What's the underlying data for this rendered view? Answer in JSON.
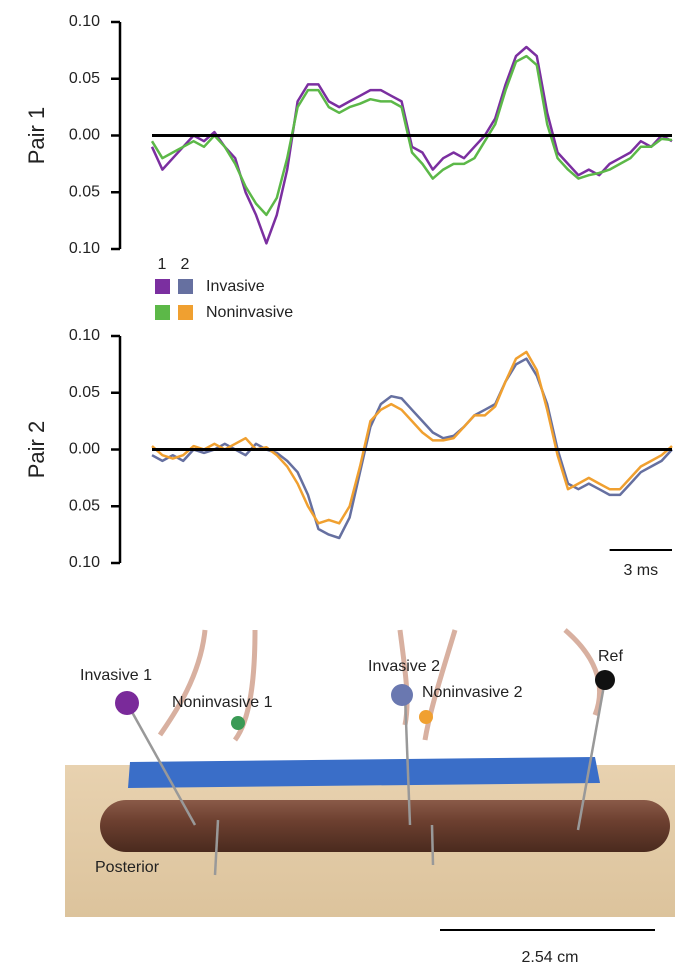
{
  "chart_data": [
    {
      "type": "line",
      "y_label": "Pair 1",
      "x": [
        0,
        0.5,
        1,
        1.5,
        2,
        2.5,
        3,
        3.5,
        4,
        4.5,
        5,
        5.5,
        6,
        6.5,
        7,
        7.5,
        8,
        8.5,
        9,
        9.5,
        10,
        10.5,
        11,
        11.5,
        12,
        12.5,
        13,
        13.5,
        14,
        14.5,
        15,
        15.5,
        16,
        16.5,
        17,
        17.5,
        18,
        18.5,
        19,
        19.5,
        20,
        20.5,
        21,
        21.5,
        22,
        22.5,
        23,
        23.5,
        24,
        24.5,
        25
      ],
      "xlim": [
        0,
        25
      ],
      "ylim": [
        -0.1,
        0.1
      ],
      "yticks": [
        {
          "value": 0.1,
          "label": "0.10"
        },
        {
          "value": 0.05,
          "label": "0.05"
        },
        {
          "value": 0,
          "label": "0.00"
        },
        {
          "value": -0.05,
          "label": "0.05"
        },
        {
          "value": -0.1,
          "label": "0.10"
        }
      ],
      "series": [
        {
          "name": "Invasive",
          "color": "#7b2fa0",
          "values": [
            -0.01,
            -0.03,
            -0.02,
            -0.01,
            0.0,
            -0.005,
            0.003,
            -0.01,
            -0.02,
            -0.05,
            -0.07,
            -0.095,
            -0.07,
            -0.03,
            0.03,
            0.045,
            0.045,
            0.03,
            0.025,
            0.03,
            0.035,
            0.04,
            0.04,
            0.035,
            0.03,
            -0.01,
            -0.015,
            -0.03,
            -0.02,
            -0.015,
            -0.02,
            -0.01,
            0.0,
            0.015,
            0.045,
            0.07,
            0.078,
            0.07,
            0.02,
            -0.015,
            -0.025,
            -0.035,
            -0.03,
            -0.035,
            -0.025,
            -0.02,
            -0.015,
            -0.005,
            -0.01,
            0.0,
            -0.005
          ]
        },
        {
          "name": "Noninvasive",
          "color": "#5cb848",
          "values": [
            -0.005,
            -0.02,
            -0.015,
            -0.01,
            -0.005,
            -0.01,
            0.0,
            -0.01,
            -0.025,
            -0.045,
            -0.06,
            -0.07,
            -0.055,
            -0.02,
            0.025,
            0.04,
            0.04,
            0.025,
            0.02,
            0.025,
            0.028,
            0.032,
            0.03,
            0.03,
            0.025,
            -0.015,
            -0.025,
            -0.038,
            -0.03,
            -0.025,
            -0.025,
            -0.02,
            -0.005,
            0.01,
            0.04,
            0.065,
            0.07,
            0.062,
            0.01,
            -0.02,
            -0.03,
            -0.038,
            -0.035,
            -0.033,
            -0.03,
            -0.025,
            -0.02,
            -0.01,
            -0.01,
            -0.003,
            -0.004
          ]
        }
      ]
    },
    {
      "type": "line",
      "y_label": "Pair 2",
      "x": [
        0,
        0.5,
        1,
        1.5,
        2,
        2.5,
        3,
        3.5,
        4,
        4.5,
        5,
        5.5,
        6,
        6.5,
        7,
        7.5,
        8,
        8.5,
        9,
        9.5,
        10,
        10.5,
        11,
        11.5,
        12,
        12.5,
        13,
        13.5,
        14,
        14.5,
        15,
        15.5,
        16,
        16.5,
        17,
        17.5,
        18,
        18.5,
        19,
        19.5,
        20,
        20.5,
        21,
        21.5,
        22,
        22.5,
        23,
        23.5,
        24,
        24.5,
        25
      ],
      "xlim": [
        0,
        25
      ],
      "ylim": [
        -0.1,
        0.1
      ],
      "yticks": [
        {
          "value": 0.1,
          "label": "0.10"
        },
        {
          "value": 0.05,
          "label": "0.05"
        },
        {
          "value": 0,
          "label": "0.00"
        },
        {
          "value": -0.05,
          "label": "0.05"
        },
        {
          "value": -0.1,
          "label": "0.10"
        }
      ],
      "scale_bar": {
        "length": 3,
        "label": "3 ms"
      },
      "series": [
        {
          "name": "Invasive",
          "color": "#6670a0",
          "values": [
            -0.005,
            -0.01,
            -0.005,
            -0.01,
            0.0,
            -0.003,
            0.0,
            0.005,
            0.0,
            -0.005,
            0.005,
            0.0,
            -0.003,
            -0.01,
            -0.02,
            -0.04,
            -0.07,
            -0.075,
            -0.078,
            -0.06,
            -0.02,
            0.02,
            0.04,
            0.047,
            0.045,
            0.035,
            0.025,
            0.015,
            0.01,
            0.012,
            0.02,
            0.03,
            0.035,
            0.04,
            0.06,
            0.075,
            0.08,
            0.065,
            0.04,
            0.0,
            -0.03,
            -0.035,
            -0.03,
            -0.035,
            -0.04,
            -0.04,
            -0.03,
            -0.02,
            -0.015,
            -0.01,
            0.0
          ]
        },
        {
          "name": "Noninvasive",
          "color": "#f0a030",
          "values": [
            0.003,
            -0.005,
            -0.008,
            -0.005,
            0.003,
            0.0,
            0.005,
            0.0,
            0.005,
            0.01,
            0.0,
            0.002,
            -0.005,
            -0.015,
            -0.03,
            -0.05,
            -0.065,
            -0.062,
            -0.065,
            -0.05,
            -0.015,
            0.025,
            0.035,
            0.04,
            0.035,
            0.025,
            0.015,
            0.008,
            0.008,
            0.01,
            0.02,
            0.03,
            0.03,
            0.038,
            0.06,
            0.08,
            0.086,
            0.07,
            0.035,
            -0.005,
            -0.035,
            -0.03,
            -0.025,
            -0.03,
            -0.035,
            -0.035,
            -0.025,
            -0.015,
            -0.01,
            -0.005,
            0.003
          ]
        }
      ]
    }
  ],
  "legend": {
    "columns": [
      "1",
      "2"
    ]
  },
  "photo": {
    "labels": {
      "invasive_1": "Invasive 1",
      "noninvasive_1": "Noninvasive 1",
      "invasive_2": "Invasive 2",
      "noninvasive_2": "Noninvasive 2",
      "ref": "Ref",
      "posterior": "Posterior"
    },
    "scale_label": "2.54 cm"
  }
}
